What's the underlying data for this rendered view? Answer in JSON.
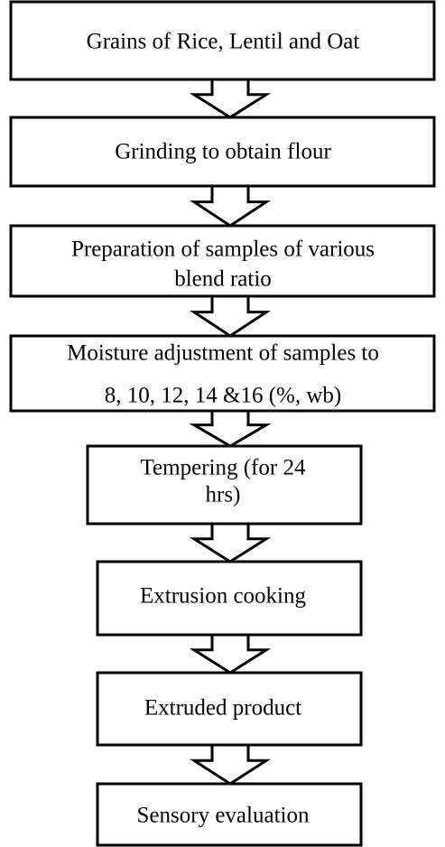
{
  "nodes": [
    {
      "lines": [
        "Grains of Rice, Lentil and Oat"
      ]
    },
    {
      "lines": [
        "Grinding to obtain flour"
      ]
    },
    {
      "lines": [
        "Preparation of samples of various",
        "blend ratio"
      ]
    },
    {
      "lines": [
        "Moisture adjustment of samples to",
        "8, 10, 12, 14 &16 (%, wb)"
      ]
    },
    {
      "lines": [
        "Tempering (for 24",
        "hrs)"
      ]
    },
    {
      "lines": [
        "Extrusion cooking"
      ]
    },
    {
      "lines": [
        "Extruded product"
      ]
    },
    {
      "lines": [
        "Sensory evaluation"
      ]
    }
  ]
}
